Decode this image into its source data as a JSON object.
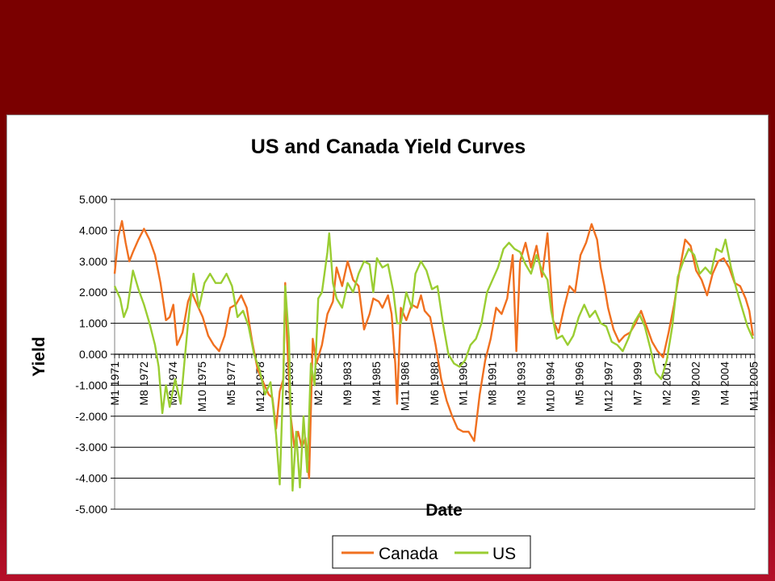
{
  "chart_data": {
    "type": "line",
    "title": "US and Canada Yield Curves",
    "xlabel": "Date",
    "ylabel": "Yield",
    "ylim": [
      -5,
      5
    ],
    "xlim": [
      1971.0,
      2005.9
    ],
    "yticks": [
      "5.000",
      "4.000",
      "3.000",
      "2.000",
      "1.000",
      "0.000",
      "-1.000",
      "-2.000",
      "-3.000",
      "-4.000",
      "-5.000"
    ],
    "xticks": [
      {
        "label": "M1 1971",
        "x": 1971.0
      },
      {
        "label": "M8 1972",
        "x": 1972.58
      },
      {
        "label": "M3 1974",
        "x": 1974.17
      },
      {
        "label": "M10 1975",
        "x": 1975.75
      },
      {
        "label": "M5 1977",
        "x": 1977.33
      },
      {
        "label": "M12 1978",
        "x": 1978.92
      },
      {
        "label": "M7 1980",
        "x": 1980.5
      },
      {
        "label": "M2 1982",
        "x": 1982.08
      },
      {
        "label": "M9 1983",
        "x": 1983.67
      },
      {
        "label": "M4 1985",
        "x": 1985.25
      },
      {
        "label": "M11 1986",
        "x": 1986.83
      },
      {
        "label": "M6 1988",
        "x": 1988.42
      },
      {
        "label": "M1 1990",
        "x": 1990.0
      },
      {
        "label": "M8 1991",
        "x": 1991.58
      },
      {
        "label": "M3 1993",
        "x": 1993.17
      },
      {
        "label": "M10 1994",
        "x": 1994.75
      },
      {
        "label": "M5 1996",
        "x": 1996.33
      },
      {
        "label": "M12 1997",
        "x": 1997.92
      },
      {
        "label": "M7 1999",
        "x": 1999.5
      },
      {
        "label": "M2 2001",
        "x": 2001.08
      },
      {
        "label": "M9 2002",
        "x": 2002.67
      },
      {
        "label": "M4 2004",
        "x": 2004.25
      },
      {
        "label": "M11 2005",
        "x": 2005.83
      }
    ],
    "grid": true,
    "legend": "bottom-center",
    "series": [
      {
        "name": "Canada",
        "color": "#f07020",
        "points": [
          [
            1971.0,
            2.6
          ],
          [
            1971.2,
            3.8
          ],
          [
            1971.4,
            4.3
          ],
          [
            1971.6,
            3.6
          ],
          [
            1971.8,
            3.0
          ],
          [
            1972.0,
            3.3
          ],
          [
            1972.3,
            3.7
          ],
          [
            1972.6,
            4.05
          ],
          [
            1972.9,
            3.7
          ],
          [
            1973.2,
            3.2
          ],
          [
            1973.5,
            2.3
          ],
          [
            1973.8,
            1.1
          ],
          [
            1974.0,
            1.2
          ],
          [
            1974.2,
            1.6
          ],
          [
            1974.4,
            0.3
          ],
          [
            1974.7,
            0.7
          ],
          [
            1975.0,
            1.7
          ],
          [
            1975.2,
            2.0
          ],
          [
            1975.5,
            1.6
          ],
          [
            1975.8,
            1.2
          ],
          [
            1976.1,
            0.6
          ],
          [
            1976.4,
            0.3
          ],
          [
            1976.7,
            0.1
          ],
          [
            1977.0,
            0.6
          ],
          [
            1977.3,
            1.5
          ],
          [
            1977.6,
            1.6
          ],
          [
            1977.9,
            1.9
          ],
          [
            1978.2,
            1.5
          ],
          [
            1978.5,
            0.4
          ],
          [
            1978.8,
            -0.5
          ],
          [
            1979.1,
            -0.9
          ],
          [
            1979.4,
            -1.3
          ],
          [
            1979.6,
            -1.4
          ],
          [
            1979.8,
            -2.4
          ],
          [
            1980.0,
            -1.2
          ],
          [
            1980.2,
            -0.8
          ],
          [
            1980.3,
            2.3
          ],
          [
            1980.4,
            0.5
          ],
          [
            1980.6,
            -2.0
          ],
          [
            1980.8,
            -3.0
          ],
          [
            1981.0,
            -2.5
          ],
          [
            1981.2,
            -3.0
          ],
          [
            1981.4,
            -2.7
          ],
          [
            1981.6,
            -4.0
          ],
          [
            1981.8,
            0.5
          ],
          [
            1982.0,
            -0.3
          ],
          [
            1982.3,
            0.3
          ],
          [
            1982.6,
            1.3
          ],
          [
            1982.9,
            1.7
          ],
          [
            1983.1,
            2.8
          ],
          [
            1983.4,
            2.2
          ],
          [
            1983.7,
            3.0
          ],
          [
            1984.0,
            2.4
          ],
          [
            1984.3,
            2.2
          ],
          [
            1984.6,
            0.8
          ],
          [
            1984.9,
            1.3
          ],
          [
            1985.1,
            1.8
          ],
          [
            1985.4,
            1.7
          ],
          [
            1985.6,
            1.5
          ],
          [
            1985.9,
            1.9
          ],
          [
            1986.1,
            1.3
          ],
          [
            1986.3,
            -0.3
          ],
          [
            1986.4,
            -1.6
          ],
          [
            1986.6,
            1.5
          ],
          [
            1986.9,
            1.1
          ],
          [
            1987.2,
            1.6
          ],
          [
            1987.5,
            1.5
          ],
          [
            1987.7,
            1.9
          ],
          [
            1987.9,
            1.4
          ],
          [
            1988.2,
            1.2
          ],
          [
            1988.5,
            0.3
          ],
          [
            1988.8,
            -0.8
          ],
          [
            1989.1,
            -1.5
          ],
          [
            1989.4,
            -2.0
          ],
          [
            1989.7,
            -2.4
          ],
          [
            1990.0,
            -2.5
          ],
          [
            1990.3,
            -2.5
          ],
          [
            1990.6,
            -2.8
          ],
          [
            1990.9,
            -1.3
          ],
          [
            1991.2,
            -0.2
          ],
          [
            1991.5,
            0.5
          ],
          [
            1991.8,
            1.5
          ],
          [
            1992.1,
            1.3
          ],
          [
            1992.4,
            1.8
          ],
          [
            1992.7,
            3.2
          ],
          [
            1992.9,
            0.1
          ],
          [
            1993.1,
            3.0
          ],
          [
            1993.4,
            3.6
          ],
          [
            1993.7,
            2.8
          ],
          [
            1994.0,
            3.5
          ],
          [
            1994.3,
            2.5
          ],
          [
            1994.6,
            3.9
          ],
          [
            1994.9,
            1.1
          ],
          [
            1995.2,
            0.7
          ],
          [
            1995.5,
            1.5
          ],
          [
            1995.8,
            2.2
          ],
          [
            1996.1,
            2.0
          ],
          [
            1996.4,
            3.2
          ],
          [
            1996.7,
            3.6
          ],
          [
            1997.0,
            4.2
          ],
          [
            1997.3,
            3.7
          ],
          [
            1997.5,
            2.8
          ],
          [
            1997.7,
            2.2
          ],
          [
            1997.9,
            1.5
          ],
          [
            1998.2,
            0.8
          ],
          [
            1998.5,
            0.4
          ],
          [
            1998.8,
            0.6
          ],
          [
            1999.1,
            0.7
          ],
          [
            1999.4,
            1.0
          ],
          [
            1999.7,
            1.4
          ],
          [
            2000.0,
            0.9
          ],
          [
            2000.3,
            0.4
          ],
          [
            2000.6,
            0.1
          ],
          [
            2000.9,
            -0.1
          ],
          [
            2001.2,
            0.7
          ],
          [
            2001.5,
            1.6
          ],
          [
            2001.8,
            2.7
          ],
          [
            2002.1,
            3.7
          ],
          [
            2002.4,
            3.5
          ],
          [
            2002.7,
            2.7
          ],
          [
            2003.0,
            2.4
          ],
          [
            2003.3,
            1.9
          ],
          [
            2003.6,
            2.6
          ],
          [
            2003.9,
            3.0
          ],
          [
            2004.2,
            3.1
          ],
          [
            2004.5,
            2.8
          ],
          [
            2004.8,
            2.3
          ],
          [
            2005.1,
            2.2
          ],
          [
            2005.4,
            1.8
          ],
          [
            2005.6,
            1.4
          ],
          [
            2005.8,
            0.6
          ]
        ]
      },
      {
        "name": "US",
        "color": "#9acd32",
        "points": [
          [
            1971.0,
            2.2
          ],
          [
            1971.3,
            1.8
          ],
          [
            1971.5,
            1.2
          ],
          [
            1971.7,
            1.5
          ],
          [
            1972.0,
            2.7
          ],
          [
            1972.3,
            2.1
          ],
          [
            1972.6,
            1.6
          ],
          [
            1972.9,
            1.0
          ],
          [
            1973.2,
            0.3
          ],
          [
            1973.4,
            -0.4
          ],
          [
            1973.6,
            -1.9
          ],
          [
            1973.8,
            -1.0
          ],
          [
            1974.0,
            -1.7
          ],
          [
            1974.3,
            -0.8
          ],
          [
            1974.6,
            -1.6
          ],
          [
            1974.8,
            -0.3
          ],
          [
            1975.0,
            1.0
          ],
          [
            1975.3,
            2.6
          ],
          [
            1975.6,
            1.5
          ],
          [
            1975.9,
            2.3
          ],
          [
            1976.2,
            2.6
          ],
          [
            1976.5,
            2.3
          ],
          [
            1976.8,
            2.3
          ],
          [
            1977.1,
            2.6
          ],
          [
            1977.4,
            2.2
          ],
          [
            1977.7,
            1.2
          ],
          [
            1978.0,
            1.4
          ],
          [
            1978.3,
            0.9
          ],
          [
            1978.6,
            0.0
          ],
          [
            1978.9,
            -0.5
          ],
          [
            1979.2,
            -1.3
          ],
          [
            1979.5,
            -0.9
          ],
          [
            1979.8,
            -2.6
          ],
          [
            1980.0,
            -4.2
          ],
          [
            1980.2,
            -0.7
          ],
          [
            1980.3,
            2.2
          ],
          [
            1980.5,
            0.5
          ],
          [
            1980.7,
            -4.4
          ],
          [
            1980.9,
            -2.5
          ],
          [
            1981.1,
            -4.3
          ],
          [
            1981.3,
            -2.0
          ],
          [
            1981.5,
            -3.8
          ],
          [
            1981.7,
            -0.3
          ],
          [
            1981.9,
            -1.0
          ],
          [
            1982.1,
            1.8
          ],
          [
            1982.3,
            2.0
          ],
          [
            1982.6,
            3.3
          ],
          [
            1982.7,
            3.9
          ],
          [
            1982.9,
            2.3
          ],
          [
            1983.1,
            1.8
          ],
          [
            1983.4,
            1.5
          ],
          [
            1983.7,
            2.3
          ],
          [
            1984.0,
            2.0
          ],
          [
            1984.3,
            2.6
          ],
          [
            1984.6,
            3.0
          ],
          [
            1984.9,
            2.9
          ],
          [
            1985.1,
            2.0
          ],
          [
            1985.3,
            3.1
          ],
          [
            1985.6,
            2.8
          ],
          [
            1985.9,
            2.9
          ],
          [
            1986.2,
            2.0
          ],
          [
            1986.4,
            1.0
          ],
          [
            1986.6,
            1.0
          ],
          [
            1986.9,
            2.0
          ],
          [
            1987.2,
            1.5
          ],
          [
            1987.4,
            2.6
          ],
          [
            1987.7,
            3.0
          ],
          [
            1988.0,
            2.7
          ],
          [
            1988.3,
            2.1
          ],
          [
            1988.6,
            2.2
          ],
          [
            1988.9,
            1.0
          ],
          [
            1989.2,
            0.0
          ],
          [
            1989.5,
            -0.3
          ],
          [
            1989.8,
            -0.4
          ],
          [
            1990.1,
            -0.2
          ],
          [
            1990.4,
            0.3
          ],
          [
            1990.7,
            0.5
          ],
          [
            1991.0,
            1.0
          ],
          [
            1991.3,
            2.0
          ],
          [
            1991.6,
            2.4
          ],
          [
            1991.9,
            2.8
          ],
          [
            1992.2,
            3.4
          ],
          [
            1992.5,
            3.6
          ],
          [
            1992.8,
            3.4
          ],
          [
            1993.1,
            3.3
          ],
          [
            1993.4,
            2.9
          ],
          [
            1993.7,
            2.6
          ],
          [
            1994.0,
            3.2
          ],
          [
            1994.3,
            2.7
          ],
          [
            1994.6,
            2.4
          ],
          [
            1994.8,
            1.4
          ],
          [
            1995.1,
            0.5
          ],
          [
            1995.4,
            0.6
          ],
          [
            1995.7,
            0.3
          ],
          [
            1996.0,
            0.6
          ],
          [
            1996.3,
            1.2
          ],
          [
            1996.6,
            1.6
          ],
          [
            1996.9,
            1.2
          ],
          [
            1997.2,
            1.4
          ],
          [
            1997.5,
            1.0
          ],
          [
            1997.8,
            0.9
          ],
          [
            1998.1,
            0.4
          ],
          [
            1998.4,
            0.3
          ],
          [
            1998.7,
            0.1
          ],
          [
            1999.0,
            0.5
          ],
          [
            1999.3,
            1.0
          ],
          [
            1999.6,
            1.3
          ],
          [
            1999.9,
            0.9
          ],
          [
            2000.2,
            0.2
          ],
          [
            2000.5,
            -0.6
          ],
          [
            2000.8,
            -0.8
          ],
          [
            2001.1,
            -0.2
          ],
          [
            2001.4,
            0.9
          ],
          [
            2001.7,
            2.5
          ],
          [
            2002.0,
            3.0
          ],
          [
            2002.3,
            3.4
          ],
          [
            2002.6,
            3.2
          ],
          [
            2002.9,
            2.6
          ],
          [
            2003.2,
            2.8
          ],
          [
            2003.5,
            2.6
          ],
          [
            2003.8,
            3.4
          ],
          [
            2004.1,
            3.3
          ],
          [
            2004.3,
            3.7
          ],
          [
            2004.6,
            2.8
          ],
          [
            2004.9,
            2.1
          ],
          [
            2005.2,
            1.5
          ],
          [
            2005.5,
            0.9
          ],
          [
            2005.8,
            0.5
          ]
        ]
      }
    ]
  }
}
